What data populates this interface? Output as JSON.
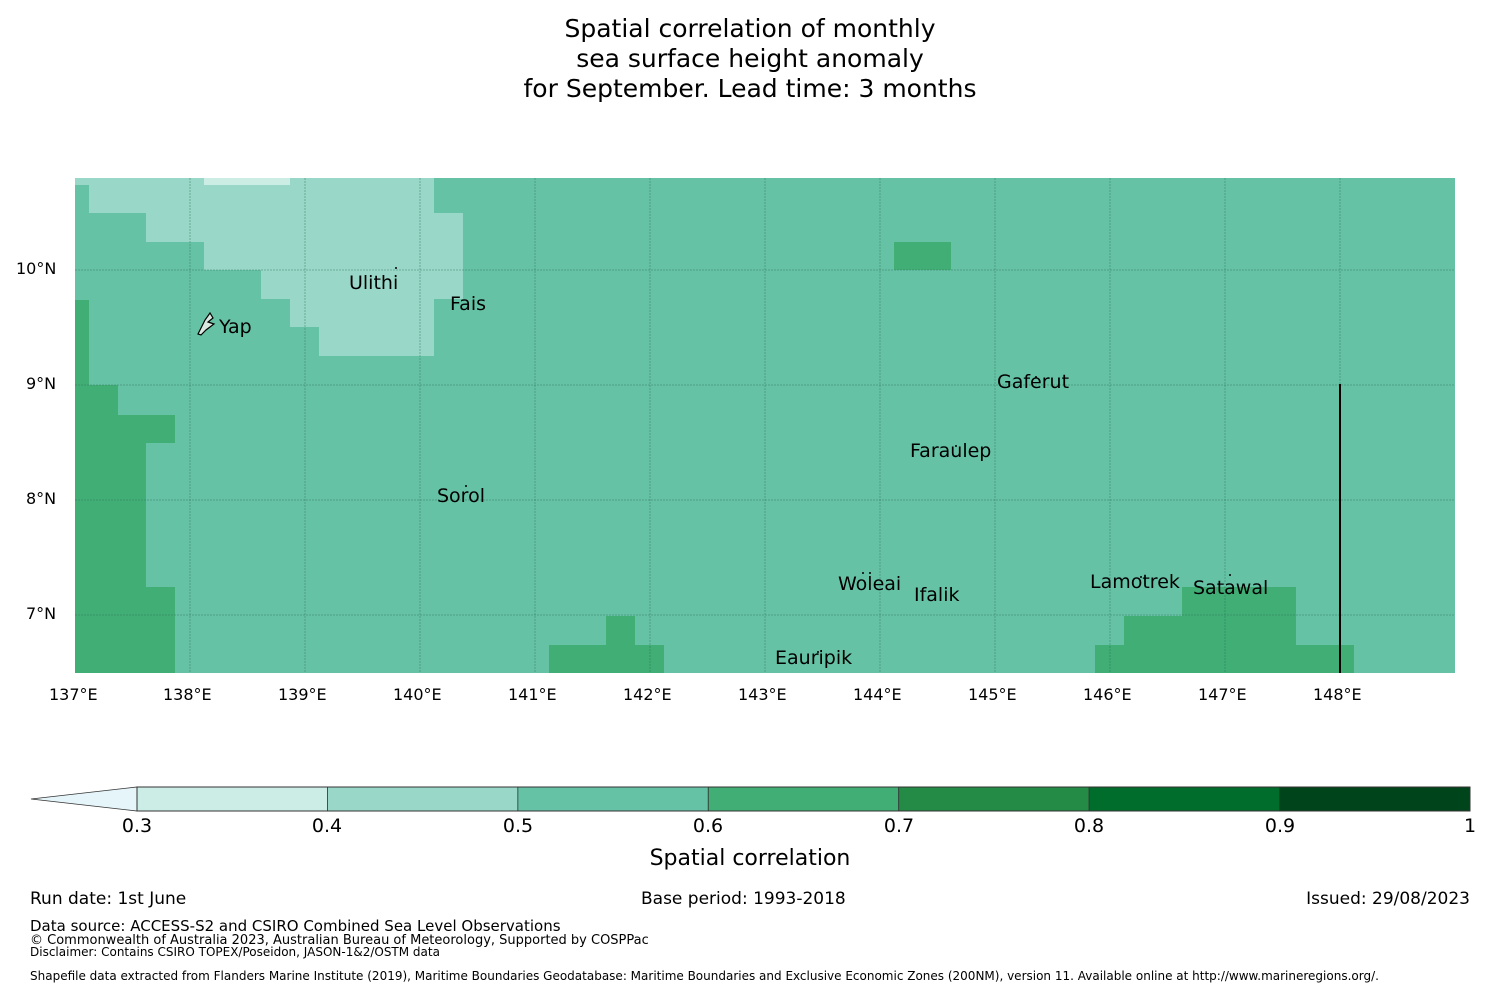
{
  "title": {
    "line1": "Spatial correlation of monthly",
    "line2": "sea surface height anomaly",
    "line3": "for September. Lead time: 3 months"
  },
  "map": {
    "lat_labels": [
      "10°N",
      "9°N",
      "8°N",
      "7°N"
    ],
    "lon_labels": [
      "137°E",
      "138°E",
      "139°E",
      "140°E",
      "141°E",
      "142°E",
      "143°E",
      "144°E",
      "145°E",
      "146°E",
      "147°E",
      "148°E"
    ],
    "places": [
      "Ulithi",
      "Fais",
      "Yap",
      "Gaferut",
      "Faraulep",
      "Sorol",
      "Woleai",
      "Ifalik",
      "Lamotrek",
      "Satawal",
      "Eauripik"
    ],
    "colors": {
      "0.3-0.4": "#ccede3",
      "0.4-0.5": "#99d8c8",
      "0.5-0.6": "#66c2a5",
      "0.6-0.7": "#41ae76",
      "below": "#e8f6f8"
    }
  },
  "colorbar": {
    "ticks": [
      "0.3",
      "0.4",
      "0.5",
      "0.6",
      "0.7",
      "0.8",
      "0.9",
      "1"
    ],
    "colors": [
      "#ccece6",
      "#99d8c9",
      "#66c2a4",
      "#41ae76",
      "#238b45",
      "#006d2c",
      "#00441b"
    ],
    "under_color": "#e5f5f9",
    "label": "Spatial correlation"
  },
  "footer": {
    "run_date": "Run date: 1st June",
    "base_period": "Base period: 1993-2018",
    "issued": "Issued: 29/08/2023",
    "data_source": "Data source: ACCESS-S2 and CSIRO Combined Sea Level Observations",
    "copyright": "© Commonwealth of Australia 2023, Australian Bureau of Meteorology, Supported by COSPPac",
    "disclaimer": "Disclaimer: Contains CSIRO TOPEX/Poseidon, JASON-1&2/OSTM data",
    "shapefile": "Shapefile data extracted from Flanders Marine Institute (2019), Maritime Boundaries Geodatabase: Maritime Boundaries and Exclusive Economic Zones (200NM), version 11. Available online at http://www.marineregions.org/."
  }
}
